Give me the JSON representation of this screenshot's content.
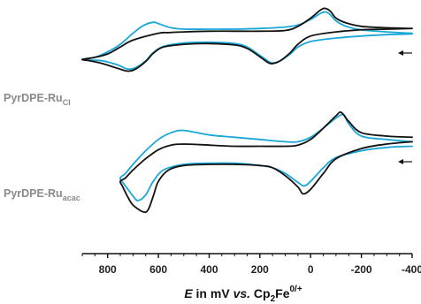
{
  "chart_data": {
    "type": "line",
    "xaxis": {
      "range": [
        900,
        -400
      ],
      "direction": "decreasing-left-to-right",
      "ticks": [
        800,
        600,
        400,
        200,
        0,
        -200,
        -400
      ],
      "tick_labels": [
        "800",
        "600",
        "400",
        "200",
        "0",
        "-200",
        "-400"
      ],
      "minor_tick_step": 50,
      "label": {
        "italic_symbol": "E",
        "mid": " in mV ",
        "italic_vs": "vs.",
        "ref_prefix": " Cp",
        "ref_sub": "2",
        "ref_mid": "Fe",
        "ref_sup": "0/+"
      }
    },
    "yaxis": {
      "shown": false
    },
    "grid": false,
    "legend": "none",
    "scan_direction_arrow": "pointing-left",
    "panels": [
      {
        "name": {
          "base": "PyrDPE-Ru",
          "sub": "Cl"
        },
        "series": [
          {
            "color": "#1aa7d8",
            "points": [
              [
                -400,
                0.62
              ],
              [
                -300,
                0.64
              ],
              [
                -200,
                0.67
              ],
              [
                -140,
                0.72
              ],
              [
                -100,
                0.8
              ],
              [
                -80,
                0.88
              ],
              [
                -60,
                0.93
              ],
              [
                -40,
                0.91
              ],
              [
                0,
                0.82
              ],
              [
                50,
                0.74
              ],
              [
                100,
                0.71
              ],
              [
                200,
                0.69
              ],
              [
                300,
                0.68
              ],
              [
                400,
                0.68
              ],
              [
                500,
                0.68
              ],
              [
                550,
                0.7
              ],
              [
                600,
                0.76
              ],
              [
                620,
                0.78
              ],
              [
                660,
                0.73
              ],
              [
                700,
                0.62
              ],
              [
                750,
                0.46
              ],
              [
                800,
                0.35
              ],
              [
                850,
                0.27
              ],
              [
                900,
                0.24
              ],
              [
                870,
                0.23
              ],
              [
                820,
                0.22
              ],
              [
                760,
                0.16
              ],
              [
                720,
                0.1
              ],
              [
                690,
                0.12
              ],
              [
                650,
                0.22
              ],
              [
                620,
                0.34
              ],
              [
                580,
                0.43
              ],
              [
                500,
                0.48
              ],
              [
                400,
                0.49
              ],
              [
                300,
                0.47
              ],
              [
                250,
                0.42
              ],
              [
                200,
                0.3
              ],
              [
                170,
                0.22
              ],
              [
                150,
                0.19
              ],
              [
                120,
                0.22
              ],
              [
                80,
                0.32
              ],
              [
                50,
                0.42
              ],
              [
                0,
                0.5
              ],
              [
                -100,
                0.55
              ],
              [
                -200,
                0.58
              ],
              [
                -300,
                0.6
              ],
              [
                -400,
                0.61
              ]
            ]
          },
          {
            "color": "#111111",
            "points": [
              [
                -400,
                0.69
              ],
              [
                -300,
                0.7
              ],
              [
                -200,
                0.72
              ],
              [
                -140,
                0.77
              ],
              [
                -100,
                0.84
              ],
              [
                -80,
                0.93
              ],
              [
                -60,
                0.98
              ],
              [
                -40,
                0.96
              ],
              [
                0,
                0.84
              ],
              [
                50,
                0.72
              ],
              [
                100,
                0.66
              ],
              [
                200,
                0.65
              ],
              [
                300,
                0.65
              ],
              [
                400,
                0.65
              ],
              [
                500,
                0.64
              ],
              [
                560,
                0.63
              ],
              [
                600,
                0.62
              ],
              [
                700,
                0.52
              ],
              [
                750,
                0.42
              ],
              [
                800,
                0.32
              ],
              [
                850,
                0.27
              ],
              [
                900,
                0.24
              ],
              [
                870,
                0.22
              ],
              [
                820,
                0.18
              ],
              [
                760,
                0.11
              ],
              [
                720,
                0.07
              ],
              [
                690,
                0.1
              ],
              [
                650,
                0.21
              ],
              [
                620,
                0.33
              ],
              [
                580,
                0.42
              ],
              [
                500,
                0.46
              ],
              [
                400,
                0.47
              ],
              [
                300,
                0.45
              ],
              [
                250,
                0.4
              ],
              [
                200,
                0.28
              ],
              [
                170,
                0.2
              ],
              [
                150,
                0.18
              ],
              [
                120,
                0.22
              ],
              [
                80,
                0.34
              ],
              [
                50,
                0.46
              ],
              [
                0,
                0.58
              ],
              [
                -100,
                0.64
              ],
              [
                -200,
                0.67
              ],
              [
                -300,
                0.68
              ],
              [
                -400,
                0.69
              ]
            ]
          }
        ]
      },
      {
        "name": {
          "base": "PyrDPE-Ru",
          "sub": "acac"
        },
        "series": [
          {
            "color": "#1aa7d8",
            "points": [
              [
                -400,
                0.7
              ],
              [
                -300,
                0.72
              ],
              [
                -200,
                0.75
              ],
              [
                -150,
                0.86
              ],
              [
                -130,
                0.94
              ],
              [
                -100,
                0.91
              ],
              [
                -50,
                0.82
              ],
              [
                0,
                0.74
              ],
              [
                50,
                0.7
              ],
              [
                100,
                0.7
              ],
              [
                200,
                0.72
              ],
              [
                300,
                0.74
              ],
              [
                400,
                0.76
              ],
              [
                500,
                0.8
              ],
              [
                550,
                0.78
              ],
              [
                600,
                0.72
              ],
              [
                650,
                0.62
              ],
              [
                700,
                0.5
              ],
              [
                730,
                0.42
              ],
              [
                750,
                0.38
              ],
              [
                740,
                0.34
              ],
              [
                720,
                0.28
              ],
              [
                700,
                0.22
              ],
              [
                680,
                0.18
              ],
              [
                650,
                0.23
              ],
              [
                620,
                0.35
              ],
              [
                580,
                0.45
              ],
              [
                500,
                0.5
              ],
              [
                400,
                0.51
              ],
              [
                300,
                0.51
              ],
              [
                200,
                0.49
              ],
              [
                150,
                0.47
              ],
              [
                100,
                0.42
              ],
              [
                50,
                0.34
              ],
              [
                25,
                0.31
              ],
              [
                0,
                0.35
              ],
              [
                -50,
                0.47
              ],
              [
                -100,
                0.56
              ],
              [
                -200,
                0.62
              ],
              [
                -300,
                0.65
              ],
              [
                -400,
                0.66
              ]
            ]
          },
          {
            "color": "#111111",
            "points": [
              [
                -400,
                0.74
              ],
              [
                -300,
                0.75
              ],
              [
                -200,
                0.78
              ],
              [
                -150,
                0.88
              ],
              [
                -120,
                0.96
              ],
              [
                -100,
                0.93
              ],
              [
                -50,
                0.82
              ],
              [
                0,
                0.72
              ],
              [
                50,
                0.67
              ],
              [
                100,
                0.66
              ],
              [
                200,
                0.66
              ],
              [
                300,
                0.66
              ],
              [
                400,
                0.67
              ],
              [
                500,
                0.68
              ],
              [
                550,
                0.67
              ],
              [
                600,
                0.63
              ],
              [
                650,
                0.55
              ],
              [
                700,
                0.45
              ],
              [
                730,
                0.38
              ],
              [
                750,
                0.35
              ],
              [
                740,
                0.3
              ],
              [
                720,
                0.21
              ],
              [
                700,
                0.14
              ],
              [
                660,
                0.08
              ],
              [
                640,
                0.1
              ],
              [
                620,
                0.22
              ],
              [
                600,
                0.35
              ],
              [
                560,
                0.45
              ],
              [
                500,
                0.49
              ],
              [
                400,
                0.5
              ],
              [
                300,
                0.5
              ],
              [
                200,
                0.49
              ],
              [
                150,
                0.47
              ],
              [
                100,
                0.4
              ],
              [
                50,
                0.3
              ],
              [
                30,
                0.24
              ],
              [
                0,
                0.28
              ],
              [
                -50,
                0.42
              ],
              [
                -100,
                0.55
              ],
              [
                -200,
                0.64
              ],
              [
                -300,
                0.68
              ],
              [
                -400,
                0.7
              ]
            ]
          }
        ]
      }
    ]
  }
}
